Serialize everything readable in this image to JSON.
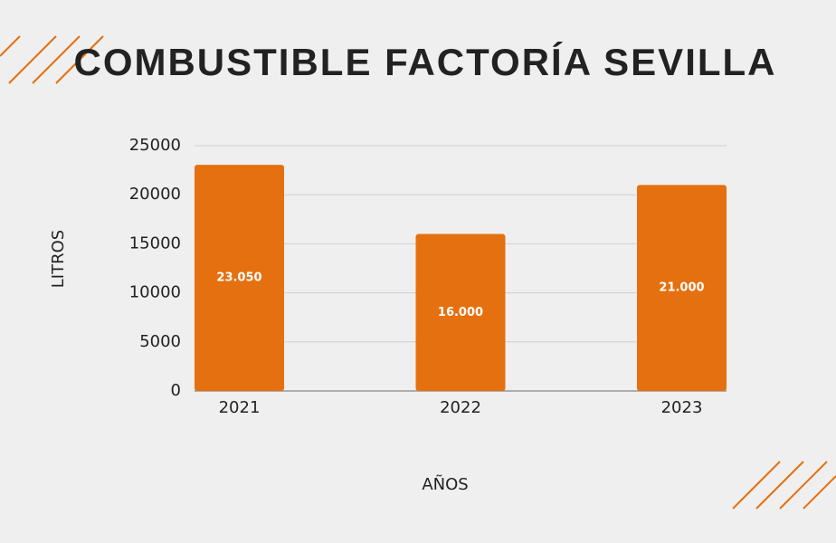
{
  "chart_data": {
    "type": "bar",
    "title": "COMBUSTIBLE FACTORÍA SEVILLA",
    "x_label": "AÑOS",
    "y_label": "LITROS",
    "categories": [
      "2021",
      "2022",
      "2023"
    ],
    "values": [
      23050,
      16000,
      21000
    ],
    "value_labels": [
      "23.050",
      "16.000",
      "21.000"
    ],
    "color": "#e5700f",
    "ylim": [
      0,
      25000
    ],
    "yticks": [
      0,
      5000,
      10000,
      15000,
      20000,
      25000
    ],
    "grid": true
  }
}
